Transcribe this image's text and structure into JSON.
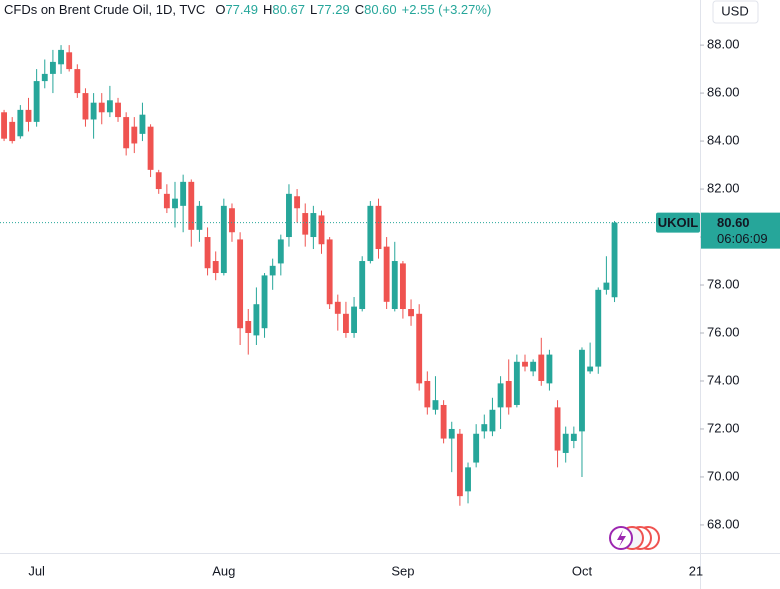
{
  "chart_data": {
    "type": "candlestick",
    "title": "CFDs on Brent Crude Oil, 1D, TVC",
    "ohlc": [
      {
        "key": "O",
        "value": "77.49"
      },
      {
        "key": "H",
        "value": "80.67"
      },
      {
        "key": "L",
        "value": "77.29"
      },
      {
        "key": "C",
        "value": "80.60"
      }
    ],
    "change": "+2.55 (+3.27%)",
    "currency": "USD",
    "symbol": "UKOIL",
    "last_price": {
      "value": 80.6,
      "label": "80.60"
    },
    "countdown": "06:06:09",
    "up_color": "#26a69a",
    "down_color": "#ef5350",
    "categories": [
      null,
      null,
      null,
      null,
      "Jul",
      null,
      null,
      null,
      null,
      null,
      null,
      null,
      null,
      null,
      null,
      null,
      null,
      null,
      null,
      null,
      null,
      null,
      null,
      null,
      null,
      null,
      null,
      "Aug",
      null,
      null,
      null,
      null,
      null,
      null,
      null,
      null,
      null,
      null,
      null,
      null,
      null,
      null,
      null,
      null,
      null,
      null,
      null,
      null,
      null,
      "Sep",
      null,
      null,
      null,
      null,
      null,
      null,
      null,
      null,
      null,
      null,
      null,
      null,
      null,
      null,
      null,
      null,
      null,
      null,
      null,
      null,
      null,
      "Oct",
      null,
      null,
      null,
      null,
      null,
      null,
      null,
      null,
      null,
      null,
      null,
      null,
      null,
      "21"
    ],
    "open": [
      85.2,
      84.8,
      84.2,
      85.3,
      84.8,
      86.5,
      86.8,
      87.2,
      87.7,
      87.0,
      86.0,
      84.9,
      85.6,
      85.2,
      85.6,
      85.0,
      84.6,
      84.3,
      84.6,
      82.7,
      81.8,
      81.2,
      81.3,
      82.3,
      80.3,
      80.0,
      79.0,
      78.5,
      81.2,
      79.9,
      76.5,
      75.9,
      76.2,
      78.4,
      78.9,
      80.0,
      81.7,
      81.0,
      80.0,
      80.9,
      79.9,
      77.3,
      76.8,
      76.0,
      77.0,
      79.0,
      81.3,
      79.6,
      77.0,
      78.9,
      77.0,
      76.8,
      74.0,
      72.8,
      73.0,
      71.6,
      71.8,
      69.4,
      70.6,
      71.9,
      71.9,
      72.9,
      74.0,
      73.0,
      74.8,
      74.4,
      75.1,
      73.9,
      72.9,
      71.0,
      71.5,
      71.9,
      74.4,
      74.6,
      77.8,
      77.49,
      null,
      null,
      null,
      null,
      null,
      null,
      null,
      null,
      null,
      null
    ],
    "high": [
      85.3,
      85.0,
      85.5,
      85.8,
      87.0,
      87.4,
      87.8,
      88.0,
      88.0,
      87.2,
      86.2,
      86.0,
      86.0,
      86.3,
      85.8,
      85.2,
      85.0,
      85.6,
      84.7,
      82.8,
      82.2,
      82.3,
      82.6,
      82.4,
      81.5,
      80.4,
      79.4,
      81.6,
      81.4,
      80.2,
      77.0,
      77.9,
      78.5,
      79.1,
      80.1,
      82.2,
      82.0,
      81.4,
      81.3,
      81.1,
      80.0,
      77.6,
      77.3,
      77.5,
      79.2,
      81.5,
      81.6,
      80.0,
      79.8,
      79.0,
      77.4,
      77.2,
      74.4,
      74.2,
      73.2,
      72.3,
      72.0,
      70.6,
      72.2,
      72.6,
      73.3,
      74.2,
      74.9,
      75.1,
      75.1,
      74.9,
      75.8,
      75.3,
      73.2,
      72.1,
      72.1,
      75.4,
      75.6,
      77.9,
      79.2,
      80.67,
      null,
      null,
      null,
      null,
      null,
      null,
      null,
      null,
      null,
      null
    ],
    "low": [
      84.0,
      83.9,
      84.1,
      84.4,
      84.6,
      86.2,
      86.0,
      86.8,
      86.9,
      85.8,
      84.6,
      84.1,
      84.7,
      85.0,
      84.8,
      83.4,
      83.5,
      84.0,
      82.5,
      81.8,
      81.0,
      80.4,
      80.2,
      79.6,
      79.8,
      78.4,
      78.2,
      78.4,
      79.8,
      75.5,
      75.1,
      75.5,
      75.8,
      77.8,
      78.4,
      79.6,
      80.6,
      79.6,
      79.5,
      79.3,
      77.0,
      76.1,
      75.8,
      75.8,
      76.9,
      78.9,
      79.1,
      77.0,
      76.9,
      76.6,
      76.3,
      73.6,
      72.6,
      72.6,
      71.4,
      70.2,
      68.8,
      68.9,
      70.4,
      71.6,
      71.7,
      72.0,
      72.6,
      72.9,
      74.4,
      74.2,
      73.8,
      73.6,
      70.4,
      70.6,
      71.2,
      70.0,
      74.3,
      74.3,
      77.6,
      77.29,
      null,
      null,
      null,
      null,
      null,
      null,
      null,
      null,
      null,
      null
    ],
    "close": [
      84.1,
      84.0,
      85.3,
      84.8,
      86.5,
      86.8,
      87.3,
      87.8,
      87.0,
      86.0,
      84.9,
      85.6,
      85.2,
      85.7,
      85.0,
      83.7,
      83.9,
      85.1,
      82.8,
      82.0,
      81.2,
      81.6,
      82.3,
      80.3,
      81.3,
      78.7,
      78.5,
      81.3,
      80.2,
      76.2,
      76.0,
      77.2,
      78.4,
      78.8,
      79.9,
      81.8,
      81.2,
      80.1,
      81.0,
      79.7,
      77.2,
      76.8,
      76.0,
      77.1,
      79.0,
      81.3,
      79.5,
      77.3,
      79.0,
      77.0,
      76.7,
      73.9,
      72.9,
      73.2,
      71.6,
      72.0,
      69.2,
      70.4,
      71.8,
      72.2,
      72.8,
      73.9,
      72.9,
      74.8,
      74.6,
      74.8,
      74.0,
      75.1,
      71.1,
      71.8,
      71.8,
      75.3,
      74.6,
      77.8,
      78.1,
      80.6,
      null,
      null,
      null,
      null,
      null,
      null,
      null,
      null,
      null,
      null
    ],
    "ylim": [
      66.83,
      89.88
    ],
    "yticks": [
      {
        "value": 68,
        "label": "68.00"
      },
      {
        "value": 70,
        "label": "70.00"
      },
      {
        "value": 72,
        "label": "72.00"
      },
      {
        "value": 74,
        "label": "74.00"
      },
      {
        "value": 76,
        "label": "76.00"
      },
      {
        "value": 78,
        "label": "78.00"
      },
      {
        "value": 80,
        "label": "80.00"
      },
      {
        "value": 82,
        "label": "82.00"
      },
      {
        "value": 84,
        "label": "84.00"
      },
      {
        "value": 86,
        "label": "86.00"
      },
      {
        "value": 88,
        "label": "88.00"
      }
    ],
    "grid": false
  }
}
